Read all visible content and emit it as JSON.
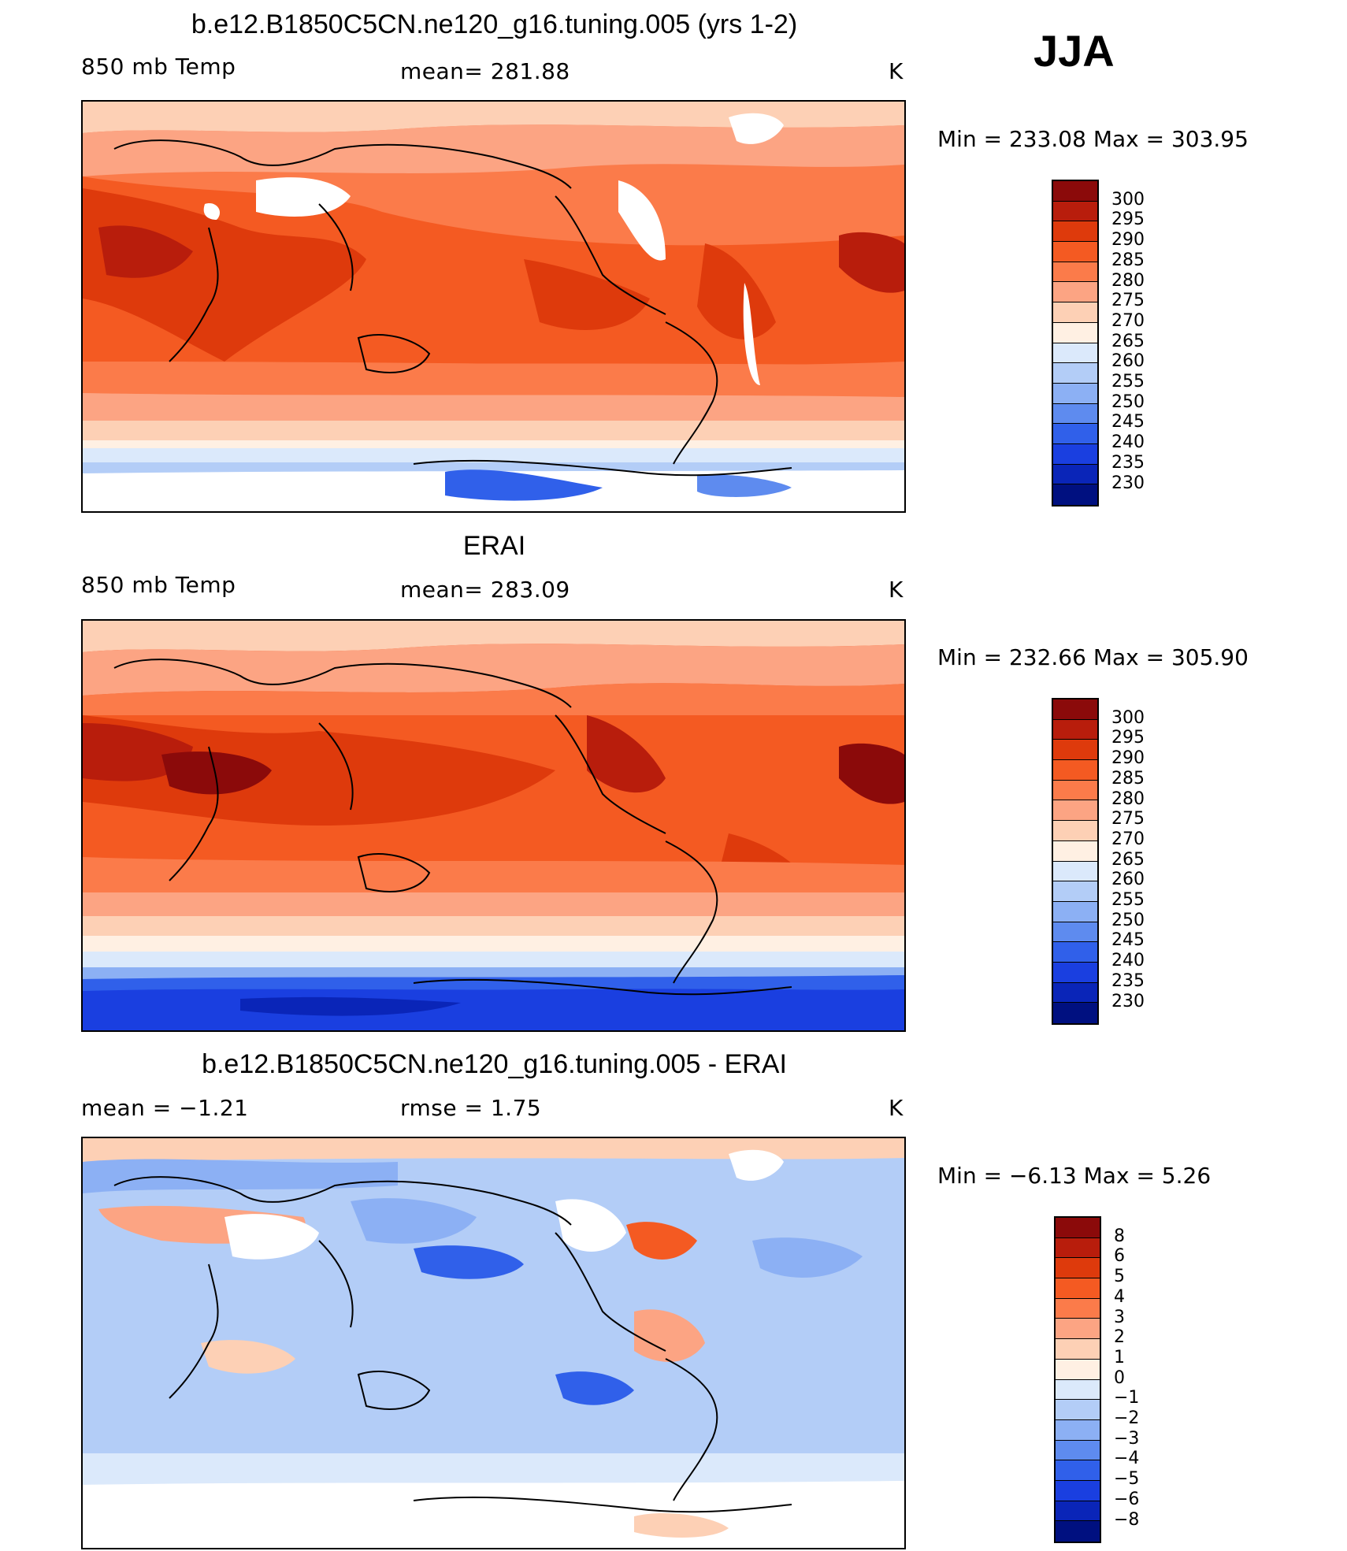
{
  "season": "JJA",
  "panels": [
    {
      "title": "b.e12.B1850C5CN.ne120_g16.tuning.005 (yrs 1-2)",
      "left_label": "850 mb Temp",
      "center_label": "mean=  281.88",
      "units": "K",
      "minmax": "Min  =  233.08  Max  =  303.95"
    },
    {
      "title": "ERAI",
      "left_label": "850 mb Temp",
      "center_label": "mean=  283.09",
      "units": "K",
      "minmax": "Min  =  232.66  Max  =  305.90"
    },
    {
      "title": "b.e12.B1850C5CN.ne120_g16.tuning.005 - ERAI",
      "left_label": "mean =    −1.21",
      "center_label": "rmse =     1.75",
      "units": "K",
      "minmax": "Min  =    −6.13  Max  =      5.26"
    }
  ],
  "chart_data": [
    {
      "type": "heatmap",
      "title": "b.e12.B1850C5CN.ne120_g16.tuning.005 (yrs 1-2)",
      "variable": "850 mb Temp",
      "units": "K",
      "mean": 281.88,
      "min": 233.08,
      "max": 303.95,
      "colorbar_levels": [
        300,
        295,
        290,
        285,
        280,
        275,
        270,
        265,
        260,
        255,
        250,
        245,
        240,
        235,
        230
      ],
      "colorbar_colors": [
        "#8b0a0a",
        "#b81d0c",
        "#de3a0c",
        "#f45a22",
        "#fb7b4a",
        "#fca483",
        "#fdd0b5",
        "#fff0e3",
        "#dbe9fb",
        "#b3cdf7",
        "#8cb0f4",
        "#5e8bef",
        "#3060ea",
        "#1a3fe0",
        "#0a25b8",
        "#001080"
      ]
    },
    {
      "type": "heatmap",
      "title": "ERAI",
      "variable": "850 mb Temp",
      "units": "K",
      "mean": 283.09,
      "min": 232.66,
      "max": 305.9,
      "colorbar_levels": [
        300,
        295,
        290,
        285,
        280,
        275,
        270,
        265,
        260,
        255,
        250,
        245,
        240,
        235,
        230
      ],
      "colorbar_colors": [
        "#8b0a0a",
        "#b81d0c",
        "#de3a0c",
        "#f45a22",
        "#fb7b4a",
        "#fca483",
        "#fdd0b5",
        "#fff0e3",
        "#dbe9fb",
        "#b3cdf7",
        "#8cb0f4",
        "#5e8bef",
        "#3060ea",
        "#1a3fe0",
        "#0a25b8",
        "#001080"
      ]
    },
    {
      "type": "heatmap",
      "title": "b.e12.B1850C5CN.ne120_g16.tuning.005 - ERAI",
      "units": "K",
      "mean": -1.21,
      "rmse": 1.75,
      "min": -6.13,
      "max": 5.26,
      "colorbar_levels": [
        "8",
        "6",
        "5",
        "4",
        "3",
        "2",
        "1",
        "0",
        "−1",
        "−2",
        "−3",
        "−4",
        "−5",
        "−6",
        "−8"
      ],
      "colorbar_colors": [
        "#8b0a0a",
        "#b81d0c",
        "#de3a0c",
        "#f45a22",
        "#fb7b4a",
        "#fca483",
        "#fdd0b5",
        "#fff0e3",
        "#dbe9fb",
        "#b3cdf7",
        "#8cb0f4",
        "#5e8bef",
        "#3060ea",
        "#1a3fe0",
        "#0a25b8",
        "#001080"
      ]
    }
  ]
}
